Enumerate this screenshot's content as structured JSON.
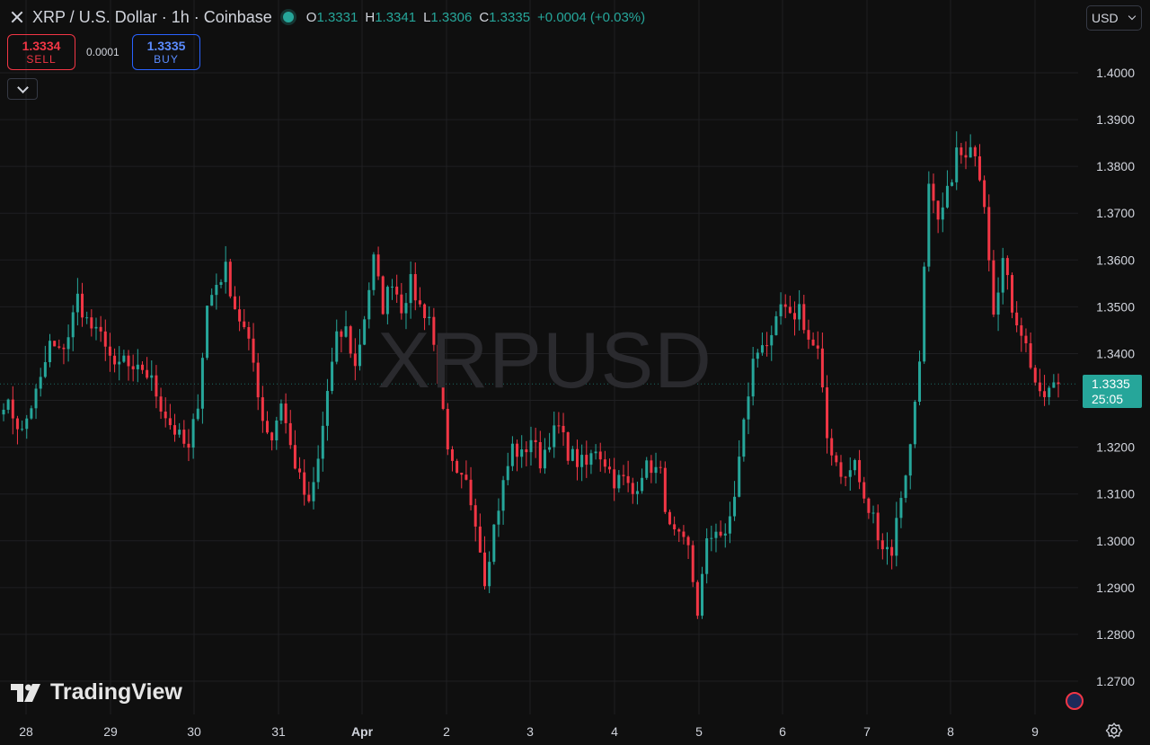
{
  "header": {
    "title": "XRP / U.S. Dollar · 1h · Coinbase",
    "ohlc": [
      {
        "k": "O",
        "v": "1.3331"
      },
      {
        "k": "H",
        "v": "1.3341"
      },
      {
        "k": "L",
        "v": "1.3306"
      },
      {
        "k": "C",
        "v": "1.3335"
      }
    ],
    "change": "+0.0004 (+0.03%)"
  },
  "trade": {
    "sell_price": "1.3334",
    "sell_label": "SELL",
    "spread": "0.0001",
    "buy_price": "1.3335",
    "buy_label": "BUY"
  },
  "currency": "USD",
  "watermark": "XRPUSD",
  "logo": "TradingView",
  "last_price": {
    "value": "1.3335",
    "countdown": "25:05"
  },
  "colors": {
    "up": "#26a69a",
    "down": "#f23645",
    "bg": "#0f0f0f",
    "grid": "#1f1f22"
  },
  "icons": [
    "close-icon",
    "status-dot",
    "chevron-down-icon",
    "tradingview-logo-icon",
    "us-flag-icon",
    "gear-icon"
  ],
  "chart_data": {
    "type": "candlestick",
    "timeframe": "1h",
    "ylim": [
      1.262,
      1.408
    ],
    "y_ticks": [
      "1.2700",
      "1.2800",
      "1.2900",
      "1.3000",
      "1.3100",
      "1.3200",
      "1.3300",
      "1.3400",
      "1.3500",
      "1.3600",
      "1.3700",
      "1.3800",
      "1.3900",
      "1.4000"
    ],
    "x_ticks": [
      "28",
      "29",
      "30",
      "31",
      "Apr",
      "2",
      "3",
      "4",
      "5",
      "6",
      "7",
      "8",
      "9"
    ],
    "grid": true,
    "last": 1.3335,
    "anchors": [
      [
        "28",
        1.33
      ],
      [
        "28",
        1.327
      ],
      [
        "28",
        1.323
      ],
      [
        "28",
        1.329
      ],
      [
        "28",
        1.334
      ],
      [
        "28",
        1.342
      ],
      [
        "28",
        1.34
      ],
      [
        "28",
        1.344
      ],
      [
        "28",
        1.352
      ],
      [
        "28",
        1.347
      ],
      [
        "28",
        1.344
      ],
      [
        "28",
        1.343
      ],
      [
        "29",
        1.336
      ],
      [
        "29",
        1.339
      ],
      [
        "29",
        1.335
      ],
      [
        "29",
        1.337
      ],
      [
        "29",
        1.334
      ],
      [
        "29",
        1.329
      ],
      [
        "29",
        1.325
      ],
      [
        "29",
        1.322
      ],
      [
        "29",
        1.319
      ],
      [
        "30",
        1.33
      ],
      [
        "30",
        1.35
      ],
      [
        "30",
        1.355
      ],
      [
        "30",
        1.358
      ],
      [
        "30",
        1.35
      ],
      [
        "30",
        1.345
      ],
      [
        "30",
        1.338
      ],
      [
        "30",
        1.326
      ],
      [
        "30",
        1.322
      ],
      [
        "31",
        1.33
      ],
      [
        "31",
        1.32
      ],
      [
        "31",
        1.313
      ],
      [
        "31",
        1.307
      ],
      [
        "31",
        1.317
      ],
      [
        "31",
        1.332
      ],
      [
        "31",
        1.343
      ],
      [
        "31",
        1.345
      ],
      [
        "Apr",
        1.337
      ],
      [
        "Apr",
        1.348
      ],
      [
        "Apr",
        1.36
      ],
      [
        "Apr",
        1.35
      ],
      [
        "Apr",
        1.356
      ],
      [
        "Apr",
        1.35
      ],
      [
        "Apr",
        1.355
      ],
      [
        "Apr",
        1.35
      ],
      [
        "Apr",
        1.348
      ],
      [
        "2",
        1.335
      ],
      [
        "2",
        1.318
      ],
      [
        "2",
        1.313
      ],
      [
        "2",
        1.312
      ],
      [
        "2",
        1.305
      ],
      [
        "2",
        1.292
      ],
      [
        "2",
        1.303
      ],
      [
        "2",
        1.312
      ],
      [
        "2",
        1.32
      ],
      [
        "3",
        1.318
      ],
      [
        "3",
        1.322
      ],
      [
        "3",
        1.317
      ],
      [
        "3",
        1.322
      ],
      [
        "3",
        1.324
      ],
      [
        "3",
        1.319
      ],
      [
        "3",
        1.317
      ],
      [
        "3",
        1.316
      ],
      [
        "3",
        1.32
      ],
      [
        "4",
        1.317
      ],
      [
        "4",
        1.313
      ],
      [
        "4",
        1.313
      ],
      [
        "4",
        1.31
      ],
      [
        "4",
        1.315
      ],
      [
        "4",
        1.316
      ],
      [
        "4",
        1.314
      ],
      [
        "4",
        1.302
      ],
      [
        "5",
        1.3
      ],
      [
        "5",
        1.298
      ],
      [
        "5",
        1.285
      ],
      [
        "5",
        1.299
      ],
      [
        "5",
        1.303
      ],
      [
        "5",
        1.3
      ],
      [
        "5",
        1.31
      ],
      [
        "5",
        1.325
      ],
      [
        "5",
        1.338
      ],
      [
        "6",
        1.343
      ],
      [
        "6",
        1.342
      ],
      [
        "6",
        1.35
      ],
      [
        "6",
        1.347
      ],
      [
        "6",
        1.35
      ],
      [
        "6",
        1.343
      ],
      [
        "6",
        1.34
      ],
      [
        "6",
        1.322
      ],
      [
        "6",
        1.317
      ],
      [
        "7",
        1.313
      ],
      [
        "7",
        1.317
      ],
      [
        "7",
        1.308
      ],
      [
        "7",
        1.305
      ],
      [
        "7",
        1.299
      ],
      [
        "7",
        1.298
      ],
      [
        "7",
        1.31
      ],
      [
        "7",
        1.32
      ],
      [
        "7",
        1.34
      ],
      [
        "8",
        1.375
      ],
      [
        "8",
        1.367
      ],
      [
        "8",
        1.374
      ],
      [
        "8",
        1.383
      ],
      [
        "8",
        1.381
      ],
      [
        "8",
        1.384
      ],
      [
        "8",
        1.373
      ],
      [
        "8",
        1.35
      ],
      [
        "8",
        1.36
      ],
      [
        "8",
        1.35
      ],
      [
        "9",
        1.345
      ],
      [
        "9",
        1.338
      ],
      [
        "9",
        1.33
      ],
      [
        "9",
        1.332
      ],
      [
        "9",
        1.3335
      ]
    ]
  }
}
